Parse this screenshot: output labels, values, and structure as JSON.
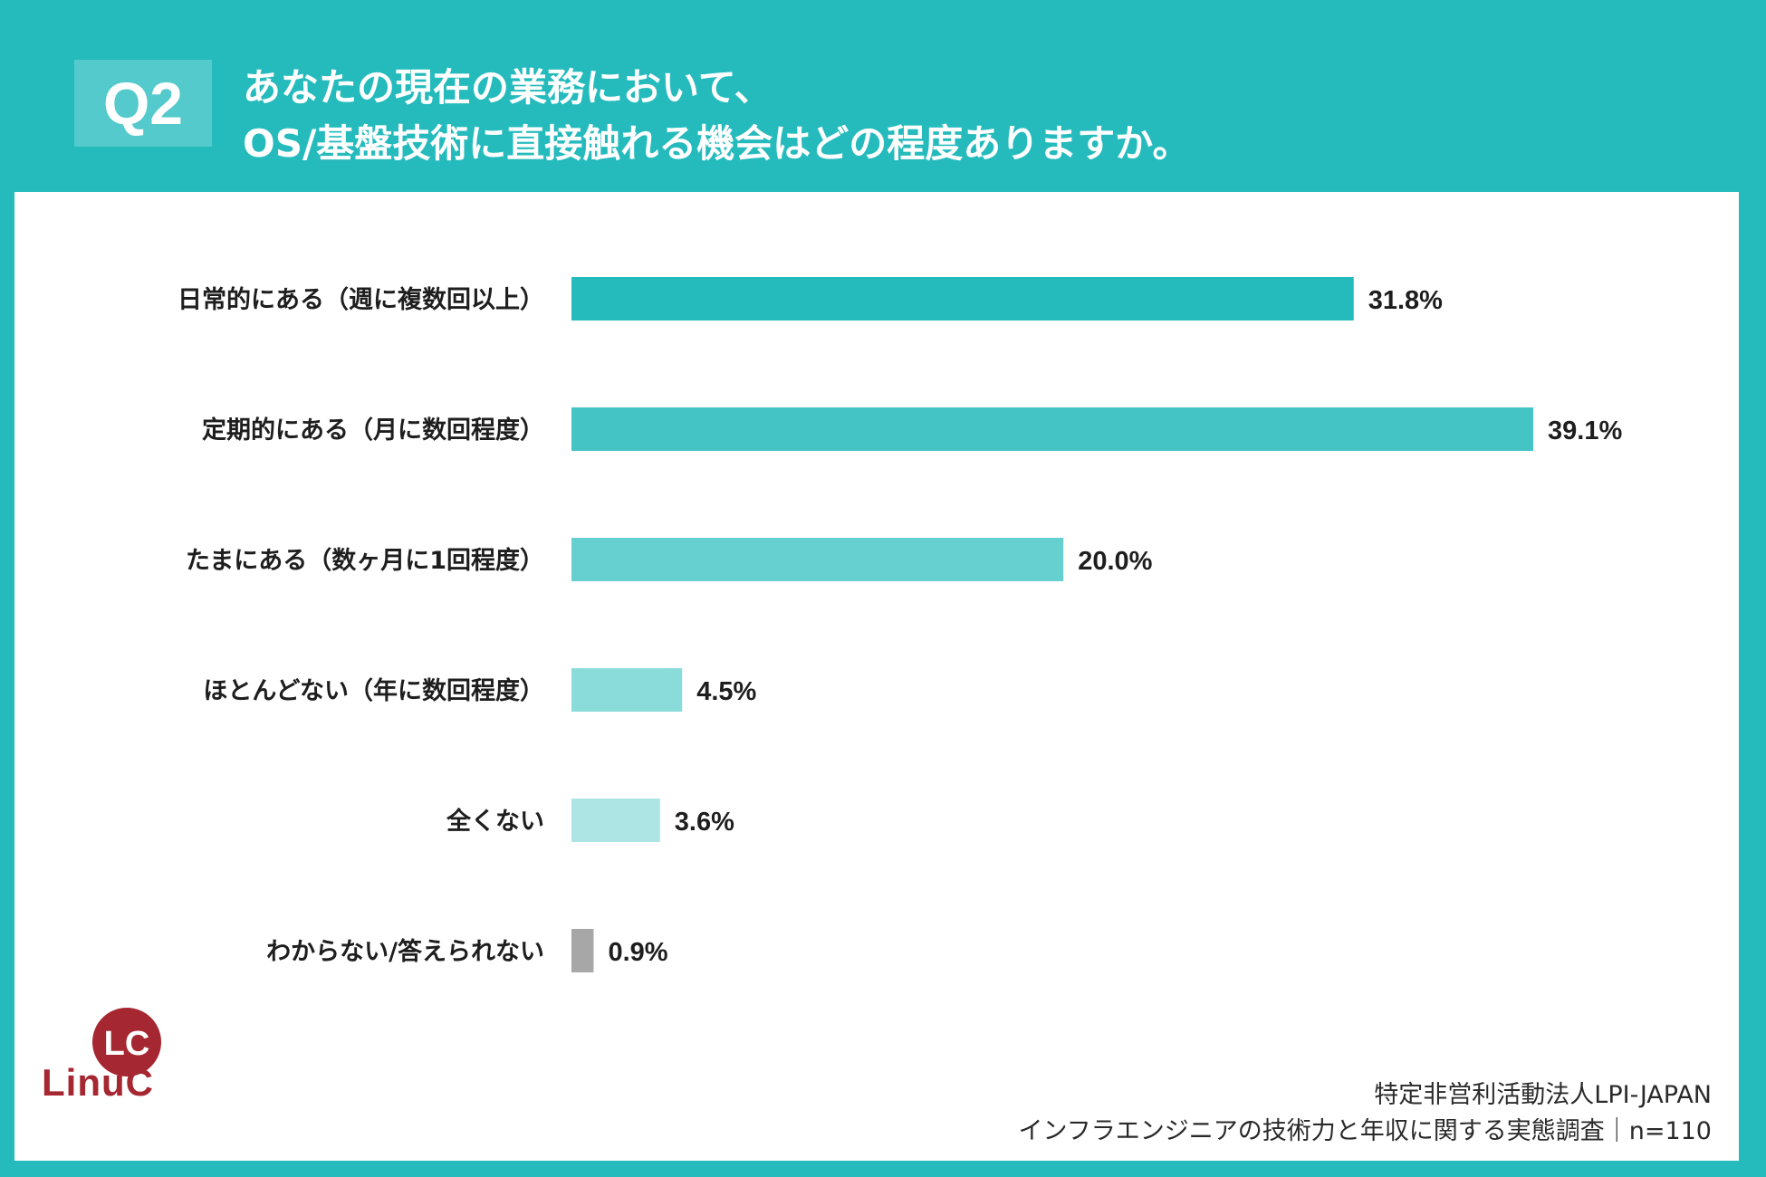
{
  "header": {
    "badge": "Q2",
    "title_line1": "あなたの現在の業務において、",
    "title_line2": "OS/基盤技術に直接触れる機会はどの程度ありますか。"
  },
  "chart_data": {
    "type": "bar",
    "orientation": "horizontal",
    "title": "あなたの現在の業務において、OS/基盤技術に直接触れる機会はどの程度ありますか。",
    "categories": [
      "日常的にある（週に複数回以上）",
      "定期的にある（月に数回程度）",
      "たまにある（数ヶ月に1回程度）",
      "ほとんどない（年に数回程度）",
      "全くない",
      "わからない/答えられない"
    ],
    "values": [
      31.8,
      39.1,
      20.0,
      4.5,
      3.6,
      0.9
    ],
    "value_labels": [
      "31.8%",
      "39.1%",
      "20.0%",
      "4.5%",
      "3.6%",
      "0.9%"
    ],
    "colors": [
      "#25BBBD",
      "#44C4C5",
      "#66D0D0",
      "#8ADCDB",
      "#ACE5E4",
      "#A7A7A7"
    ],
    "unit": "%",
    "xlim": [
      0,
      39.1
    ]
  },
  "logo": {
    "text": "LinuC",
    "mark": "LC"
  },
  "footer": {
    "line1": "特定非営利活動法人LPI-JAPAN",
    "line2": "インフラエンジニアの技術力と年収に関する実態調査｜n=110"
  },
  "colors": {
    "frame": "#25BBBD",
    "badge": "#54CACC",
    "logo": "#A52731"
  }
}
